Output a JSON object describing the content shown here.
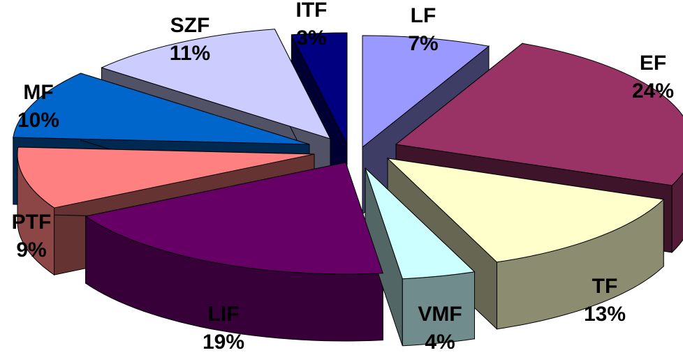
{
  "chart_data": {
    "type": "pie",
    "style": "3d-exploded",
    "legend": "none",
    "slices": [
      {
        "label": "LF",
        "pct_label": "7%",
        "value": 7,
        "color": "#9999ff"
      },
      {
        "label": "EF",
        "pct_label": "24%",
        "value": 24,
        "color": "#993366"
      },
      {
        "label": "TF",
        "pct_label": "13%",
        "value": 13,
        "color": "#ffffcc"
      },
      {
        "label": "VMF",
        "pct_label": "4%",
        "value": 4,
        "color": "#ccffff"
      },
      {
        "label": "LIF",
        "pct_label": "19%",
        "value": 19,
        "color": "#660066"
      },
      {
        "label": "PTF",
        "pct_label": "9%",
        "value": 9,
        "color": "#ff8080"
      },
      {
        "label": "MF",
        "pct_label": "10%",
        "value": 10,
        "color": "#0066cc"
      },
      {
        "label": "SZF",
        "pct_label": "11%",
        "value": 11,
        "color": "#ccccff"
      },
      {
        "label": "ITF",
        "pct_label": "3%",
        "value": 3,
        "color": "#000080"
      }
    ]
  }
}
